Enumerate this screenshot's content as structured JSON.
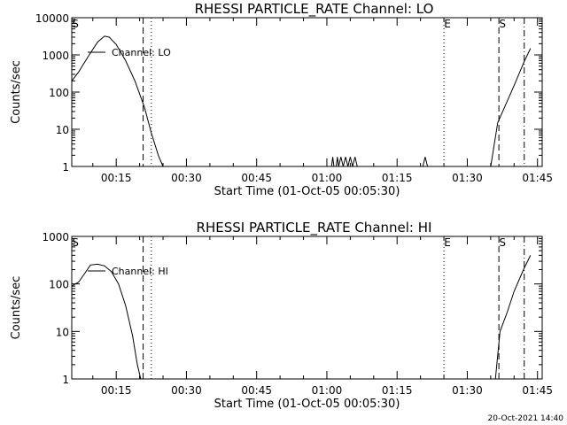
{
  "timestamp": "20-Oct-2021 14:40",
  "chart_data": [
    {
      "type": "line",
      "title": "RHESSI PARTICLE_RATE Channel: LO",
      "xlabel": "Start Time (01-Oct-05 00:05:30)",
      "ylabel": "Counts/sec",
      "yscale": "log",
      "xlim": [
        "00:05:30",
        "01:46:00"
      ],
      "ylim": [
        1,
        10000
      ],
      "xticks": [
        "00:15",
        "00:30",
        "00:45",
        "01:00",
        "01:15",
        "01:30",
        "01:45"
      ],
      "yticks": [
        "1",
        "10",
        "100",
        "1000",
        "10000"
      ],
      "legend": "Channel: LO",
      "legend_position": "top-left",
      "series": [
        {
          "name": "Channel: LO",
          "segments": [
            [
              [
                "00:05:30",
                200
              ],
              [
                "00:07:00",
                350
              ],
              [
                "00:09:00",
                900
              ],
              [
                "00:11:00",
                2200
              ],
              [
                "00:12:30",
                3200
              ],
              [
                "00:13:30",
                3000
              ],
              [
                "00:15:00",
                1900
              ],
              [
                "00:17:00",
                700
              ],
              [
                "00:19:00",
                200
              ],
              [
                "00:21:00",
                40
              ],
              [
                "00:22:30",
                8
              ],
              [
                "00:24:00",
                2
              ],
              [
                "00:25:00",
                1
              ]
            ],
            [
              [
                "01:01:00",
                1
              ],
              [
                "01:01:15",
                1.8
              ],
              [
                "01:01:30",
                1
              ],
              [
                "01:02:00",
                1
              ],
              [
                "01:02:15",
                1.8
              ],
              [
                "01:02:30",
                1
              ],
              [
                "01:03:00",
                1.8
              ],
              [
                "01:03:30",
                1
              ],
              [
                "01:04:00",
                1.8
              ],
              [
                "01:04:30",
                1
              ],
              [
                "01:05:00",
                1.8
              ],
              [
                "01:05:30",
                1
              ],
              [
                "01:06:00",
                1.8
              ],
              [
                "01:06:30",
                1
              ]
            ],
            [
              [
                "01:20:30",
                1
              ],
              [
                "01:21:00",
                1.8
              ],
              [
                "01:21:30",
                1
              ]
            ],
            [
              [
                "01:35:00",
                1
              ],
              [
                "01:36:30",
                15
              ],
              [
                "01:38:00",
                40
              ],
              [
                "01:40:00",
                150
              ],
              [
                "01:42:00",
                600
              ],
              [
                "01:43:30",
                1500
              ]
            ]
          ]
        }
      ],
      "markers": [
        {
          "label": "S",
          "time": "00:05:30",
          "style": "solid"
        },
        {
          "label": "",
          "time": "00:20:45",
          "style": "dashed"
        },
        {
          "label": "",
          "time": "00:22:30",
          "style": "dotted"
        },
        {
          "label": "E",
          "time": "01:25:00",
          "style": "dotted"
        },
        {
          "label": "S",
          "time": "01:36:45",
          "style": "dashed"
        },
        {
          "label": "",
          "time": "01:42:10",
          "style": "dashdot"
        }
      ]
    },
    {
      "type": "line",
      "title": "RHESSI PARTICLE_RATE Channel: HI",
      "xlabel": "Start Time (01-Oct-05 00:05:30)",
      "ylabel": "Counts/sec",
      "yscale": "log",
      "xlim": [
        "00:05:30",
        "01:46:00"
      ],
      "ylim": [
        1,
        1000
      ],
      "xticks": [
        "00:15",
        "00:30",
        "00:45",
        "01:00",
        "01:15",
        "01:30",
        "01:45"
      ],
      "yticks": [
        "1",
        "10",
        "100",
        "1000"
      ],
      "legend": "Channel: HI",
      "legend_position": "top-left",
      "series": [
        {
          "name": "Channel: HI",
          "segments": [
            [
              [
                "00:05:30",
                90
              ],
              [
                "00:07:00",
                110
              ],
              [
                "00:08:30",
                180
              ],
              [
                "00:09:30",
                250
              ],
              [
                "00:11:00",
                260
              ],
              [
                "00:12:30",
                240
              ],
              [
                "00:14:00",
                180
              ],
              [
                "00:15:30",
                100
              ],
              [
                "00:17:00",
                35
              ],
              [
                "00:18:30",
                8
              ],
              [
                "00:19:30",
                2
              ],
              [
                "00:20:15",
                1
              ]
            ],
            [
              [
                "01:36:00",
                1
              ],
              [
                "01:37:00",
                10
              ],
              [
                "01:38:30",
                25
              ],
              [
                "01:40:00",
                70
              ],
              [
                "01:42:00",
                200
              ],
              [
                "01:43:30",
                400
              ]
            ]
          ]
        }
      ],
      "markers": [
        {
          "label": "S",
          "time": "00:05:30",
          "style": "solid"
        },
        {
          "label": "",
          "time": "00:20:45",
          "style": "dashed"
        },
        {
          "label": "",
          "time": "00:22:30",
          "style": "dotted"
        },
        {
          "label": "E",
          "time": "01:25:00",
          "style": "dotted"
        },
        {
          "label": "S",
          "time": "01:36:45",
          "style": "dashed"
        },
        {
          "label": "",
          "time": "01:42:10",
          "style": "dashdot"
        }
      ]
    }
  ]
}
